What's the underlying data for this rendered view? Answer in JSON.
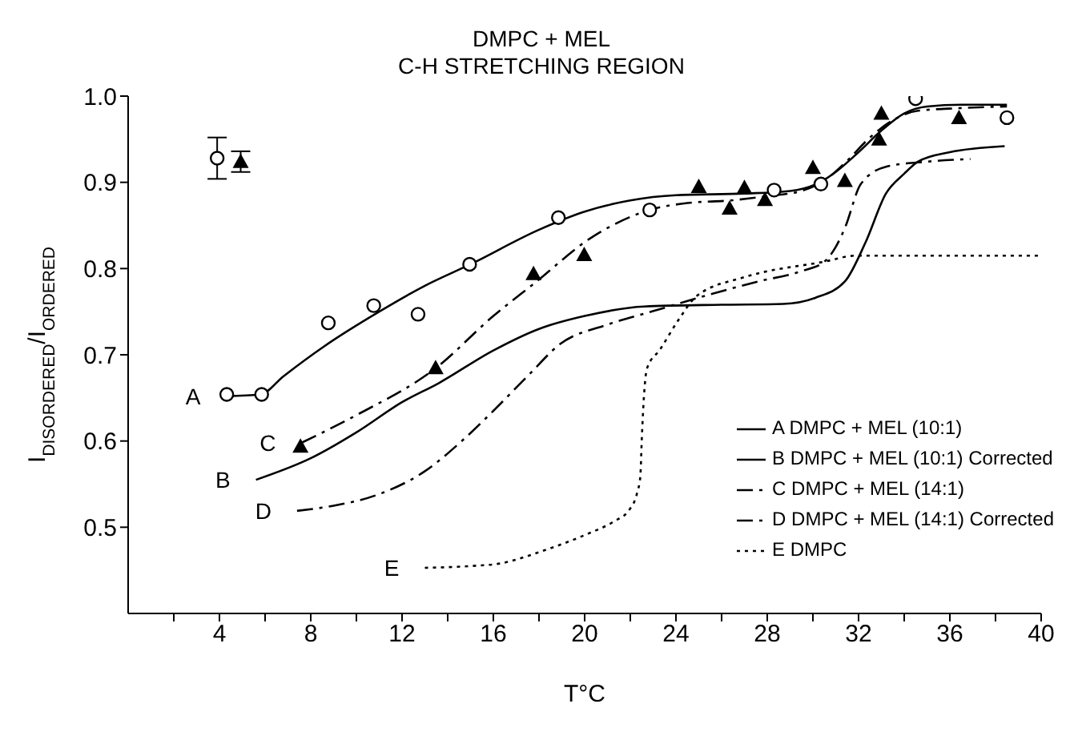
{
  "chart_data": {
    "type": "line",
    "title": "DMPC + MEL",
    "subtitle": "C-H STRETCHING REGION",
    "xlabel": "T°C",
    "ylabel": "I$_{DISORDERED}$/I$_{ORDERED}$",
    "xlim": [
      0,
      40
    ],
    "xticks": [
      {
        "value": 2,
        "label": null
      },
      4,
      {
        "value": 6,
        "label": null
      },
      8,
      {
        "value": 10,
        "label": null
      },
      12,
      {
        "value": 14,
        "label": null
      },
      16,
      {
        "value": 18,
        "label": null
      },
      20,
      {
        "value": 22,
        "label": null
      },
      24,
      {
        "value": 26,
        "label": null
      },
      28,
      {
        "value": 30,
        "label": null
      },
      32,
      {
        "value": 34,
        "label": null
      },
      36,
      {
        "value": 38,
        "label": null
      },
      40
    ],
    "ylim": [
      0.4,
      1.0
    ],
    "yticks": [
      0.5,
      0.6,
      0.7,
      0.8,
      0.9,
      {
        "value": 1.0,
        "label": "1.0"
      }
    ],
    "grid": false,
    "legend": "bottom right",
    "series": [
      {
        "name": "A DMPC + MEL (10:1)",
        "color": "#000000",
        "line_style": "solid",
        "marker": "none",
        "x": [
          4.3,
          5.8,
          6.8,
          8.6,
          11,
          13,
          15,
          18,
          20,
          22,
          24,
          27,
          29,
          30.3,
          31,
          32,
          33,
          34,
          35,
          36.5,
          38.5
        ],
        "values": [
          0.652,
          0.654,
          0.675,
          0.71,
          0.75,
          0.78,
          0.805,
          0.845,
          0.866,
          0.879,
          0.885,
          0.887,
          0.89,
          0.9,
          0.912,
          0.935,
          0.96,
          0.98,
          0.988,
          0.99,
          0.99
        ]
      },
      {
        "name": "B DMPC + MEL (10:1) Corrected",
        "color": "#000000",
        "line_style": "solid",
        "marker": "none",
        "x": [
          5.6,
          8,
          10,
          12,
          13.6,
          16,
          18,
          20,
          22.6,
          26,
          28.7,
          30.1,
          31.4,
          32.3,
          33.2,
          34,
          34.6,
          36,
          38.4
        ],
        "values": [
          0.555,
          0.58,
          0.61,
          0.645,
          0.667,
          0.705,
          0.73,
          0.745,
          0.756,
          0.758,
          0.759,
          0.766,
          0.785,
          0.83,
          0.887,
          0.91,
          0.924,
          0.935,
          0.942
        ]
      },
      {
        "name": "C DMPC + MEL (14:1)",
        "color": "#000000",
        "line_style": "dashed",
        "marker": "none",
        "x": [
          7.6,
          10,
          13.5,
          16,
          17.8,
          20.3,
          22.85,
          24.5,
          26.4,
          28,
          29.5,
          30.5,
          31.5,
          32.5,
          33.5,
          34.6,
          36.4,
          38.5
        ],
        "values": [
          0.598,
          0.63,
          0.685,
          0.745,
          0.783,
          0.836,
          0.868,
          0.876,
          0.879,
          0.884,
          0.89,
          0.902,
          0.925,
          0.952,
          0.972,
          0.983,
          0.986,
          0.988
        ]
      },
      {
        "name": "D DMPC + MEL (14:1) Corrected",
        "color": "#000000",
        "line_style": "dashed",
        "marker": "none",
        "x": [
          7.4,
          9,
          10.85,
          13,
          14.7,
          16,
          17.6,
          18.9,
          21,
          23.05,
          25.5,
          27.6,
          29.5,
          30.5,
          31,
          31.4,
          32.1,
          33.2,
          35,
          36.9
        ],
        "values": [
          0.519,
          0.525,
          0.537,
          0.565,
          0.602,
          0.635,
          0.678,
          0.712,
          0.735,
          0.751,
          0.77,
          0.785,
          0.797,
          0.808,
          0.825,
          0.847,
          0.898,
          0.918,
          0.924,
          0.927
        ]
      },
      {
        "name": "E DMPC",
        "color": "#000000",
        "line_style": "dotted",
        "marker": "none",
        "x": [
          13,
          15,
          16.3,
          18.1,
          20.1,
          21.3,
          21.95,
          22.3,
          22.44,
          22.5,
          22.58,
          22.73,
          23.3,
          24.1,
          24.9,
          27,
          30.5,
          31.9,
          40
        ],
        "values": [
          0.453,
          0.455,
          0.458,
          0.472,
          0.492,
          0.507,
          0.52,
          0.54,
          0.559,
          0.6,
          0.644,
          0.684,
          0.706,
          0.74,
          0.768,
          0.79,
          0.808,
          0.815,
          0.815
        ]
      },
      {
        "type": "scatter",
        "color": "#000000",
        "marker": "circle",
        "x": [
          3.9,
          4.32,
          5.85,
          8.77,
          10.76,
          12.7,
          14.96,
          18.85,
          22.85,
          28.3,
          30.35,
          34.5,
          38.5
        ],
        "values": [
          0.928,
          0.654,
          0.654,
          0.737,
          0.757,
          0.747,
          0.805,
          0.859,
          0.868,
          0.891,
          0.898,
          0.997,
          0.975
        ],
        "errors": [
          0.024,
          null,
          null,
          null,
          null,
          null,
          null,
          null,
          null,
          null,
          null,
          null,
          null
        ]
      },
      {
        "type": "scatter",
        "color": "#000000",
        "marker": "triangle",
        "x": [
          4.93,
          7.55,
          13.47,
          17.76,
          19.98,
          25.0,
          26.35,
          27.0,
          27.9,
          30.0,
          31.4,
          32.9,
          33.0,
          36.4
        ],
        "values": [
          0.924,
          0.594,
          0.685,
          0.794,
          0.816,
          0.895,
          0.87,
          0.894,
          0.88,
          0.917,
          0.902,
          0.95,
          0.98,
          0.975
        ],
        "errors": [
          0.012,
          null,
          null,
          null,
          null,
          null,
          null,
          null,
          null,
          null,
          null,
          null,
          null,
          null
        ]
      }
    ],
    "annotations": [
      "A",
      "B",
      "C",
      "D",
      "E"
    ]
  }
}
